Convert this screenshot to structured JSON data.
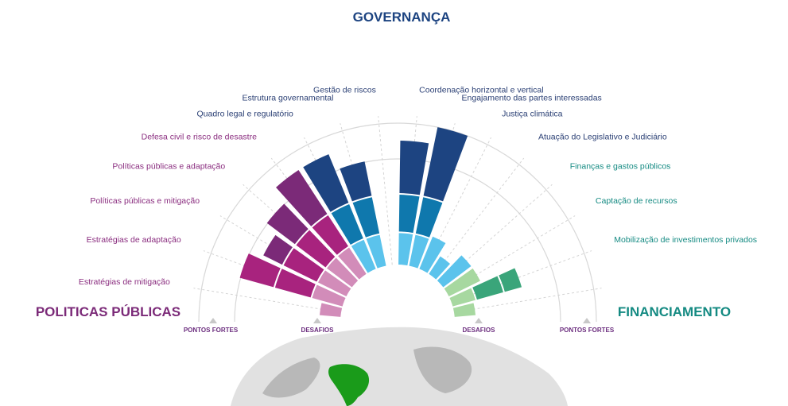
{
  "sections": {
    "top": {
      "label": "GOVERNANÇA",
      "color": "#1d4481"
    },
    "left": {
      "label": "POLITICAS PÚBLICAS",
      "color": "#7b2a78"
    },
    "right": {
      "label": "FINANCIAMENTO",
      "color": "#148a82"
    }
  },
  "axis_labels": {
    "strengths": "PONTOS FORTES",
    "challenges": "DESAFIOS",
    "color": "#6b2d7e"
  },
  "chart_data": {
    "type": "radial-bar",
    "description_scale": "each category has two stacked levels; 'inner' = desafios segment, 'outer' = pontos fortes segment; values on a 0-100 radial scale from the inner circle",
    "categories": [
      {
        "label": "Estratégias de mitigação",
        "group": "politicas",
        "inner": 12,
        "outer": 0,
        "colors": [
          "#d28cb9",
          "#a8237e"
        ]
      },
      {
        "label": "Estratégias de adaptação",
        "group": "politicas",
        "inner": 40,
        "outer": 20,
        "colors": [
          "#d28cb9",
          "#a8237e"
        ]
      },
      {
        "label": "Políticas públicas e mitigação",
        "group": "politicas",
        "inner": 40,
        "outer": 12,
        "colors": [
          "#d28cb9",
          "#a8237e",
          "#7b2a78"
        ]
      },
      {
        "label": "Políticas públicas e adaptação",
        "group": "politicas",
        "inner": 40,
        "outer": 20,
        "colors": [
          "#d28cb9",
          "#a8237e",
          "#7b2a78"
        ]
      },
      {
        "label": "Defesa civil e risco de desastre",
        "group": "politicas",
        "inner": 40,
        "outer": 30,
        "colors": [
          "#d28cb9",
          "#a8237e",
          "#7b2a78"
        ]
      },
      {
        "label": "Quadro legal e regulatório",
        "group": "governanca",
        "inner": 40,
        "outer": 30,
        "colors": [
          "#5bc3ec",
          "#0f78ad",
          "#1d4481"
        ]
      },
      {
        "label": "Estrutura governamental",
        "group": "governanca",
        "inner": 40,
        "outer": 20,
        "colors": [
          "#5bc3ec",
          "#0f78ad",
          "#1d4481"
        ]
      },
      {
        "label": "Gestão de riscos",
        "group": "governanca",
        "inner": 0,
        "outer": 0,
        "colors": [
          "#5bc3ec",
          "#0f78ad",
          "#1d4481"
        ]
      },
      {
        "label": "Coordenação horizontal e vertical",
        "group": "governanca",
        "inner": 40,
        "outer": 30,
        "colors": [
          "#5bc3ec",
          "#0f78ad",
          "#1d4481"
        ]
      },
      {
        "label": "Engajamento das partes interessadas",
        "group": "governanca",
        "inner": 40,
        "outer": 40,
        "colors": [
          "#5bc3ec",
          "#0f78ad",
          "#1d4481"
        ]
      },
      {
        "label": "Justiça climática",
        "group": "governanca",
        "inner": 20,
        "outer": 0,
        "colors": [
          "#5bc3ec"
        ]
      },
      {
        "label": "Atuação do Legislativo e Judiciário",
        "group": "governanca",
        "inner": 12,
        "outer": 0,
        "colors": [
          "#5bc3ec"
        ]
      },
      {
        "label": "Finanças e gastos públicos",
        "group": "financiamento",
        "inner": 20,
        "outer": 0,
        "colors": [
          "#5bc3ec"
        ]
      },
      {
        "label": "Captação de recursos",
        "group": "financiamento",
        "inner": 20,
        "outer": 0,
        "colors": [
          "#a7d8a0"
        ]
      },
      {
        "label": "Mobilização de investimentos privados",
        "group": "financiamento",
        "inner": 30,
        "outer": 10,
        "colors": [
          "#a7d8a0",
          "#3aa57a"
        ]
      },
      {
        "label": "",
        "group": "financiamento",
        "inner": 12,
        "outer": 0,
        "colors": [
          "#a7d8a0"
        ]
      }
    ],
    "label_colors": {
      "politicas": "#8a2d7f",
      "governanca": "#2a3f74",
      "financiamento": "#148a82"
    }
  },
  "globe": {
    "land_color": "#c9c9c9",
    "highlight_color": "#1a9b1a"
  }
}
